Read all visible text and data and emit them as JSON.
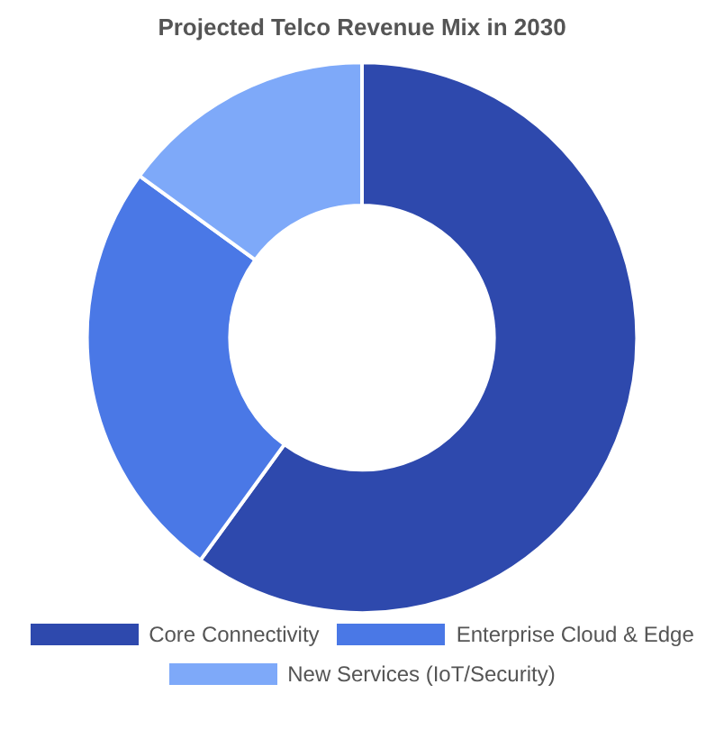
{
  "chart_data": {
    "type": "donut",
    "title": "Projected Telco Revenue Mix in 2030",
    "categories": [
      "Core Connectivity",
      "Enterprise Cloud & Edge",
      "New Services (IoT/Security)"
    ],
    "values": [
      60,
      25,
      15
    ],
    "colors": [
      "#2e49ad",
      "#4a78e6",
      "#7ea9f9"
    ],
    "legend": "bottom"
  }
}
